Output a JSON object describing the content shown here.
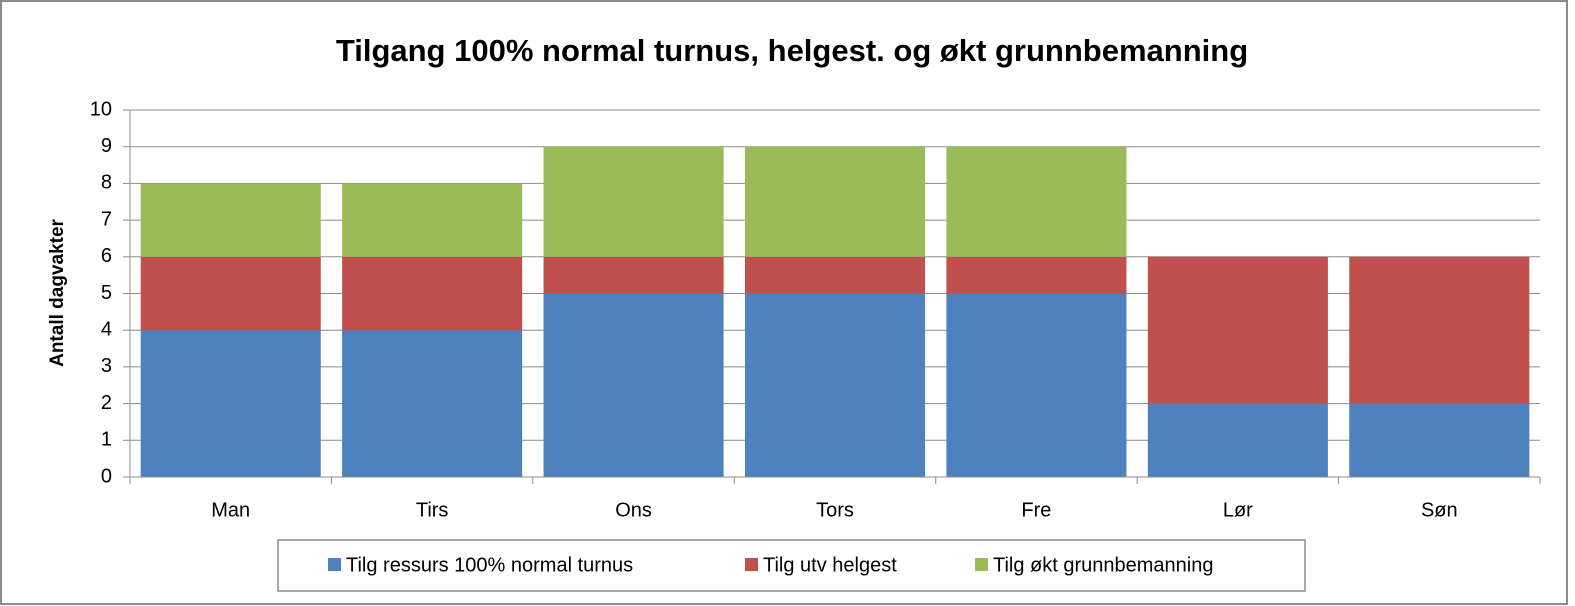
{
  "chart_data": {
    "type": "bar",
    "stacked": true,
    "title": "Tilgang 100% normal turnus, helgest.  og økt grunnbemanning",
    "y_label": "Antall dagvakter",
    "categories": [
      "Man",
      "Tirs",
      "Ons",
      "Tors",
      "Fre",
      "Lør",
      "Søn"
    ],
    "series": [
      {
        "name": "Tilg ressurs 100% normal turnus",
        "color": "#4f81bd",
        "values": [
          4,
          4,
          5,
          5,
          5,
          2,
          2
        ]
      },
      {
        "name": "Tilg utv helgest",
        "color": "#c0504d",
        "values": [
          2,
          2,
          1,
          1,
          1,
          4,
          4
        ]
      },
      {
        "name": "Tilg økt grunnbemanning",
        "color": "#9bbb59",
        "values": [
          2,
          2,
          3,
          3,
          3,
          0,
          0
        ]
      }
    ],
    "ylim": [
      0,
      10
    ],
    "yticks": [
      0,
      1,
      2,
      3,
      4,
      5,
      6,
      7,
      8,
      9,
      10
    ],
    "grid": true,
    "legend": "bottom"
  }
}
